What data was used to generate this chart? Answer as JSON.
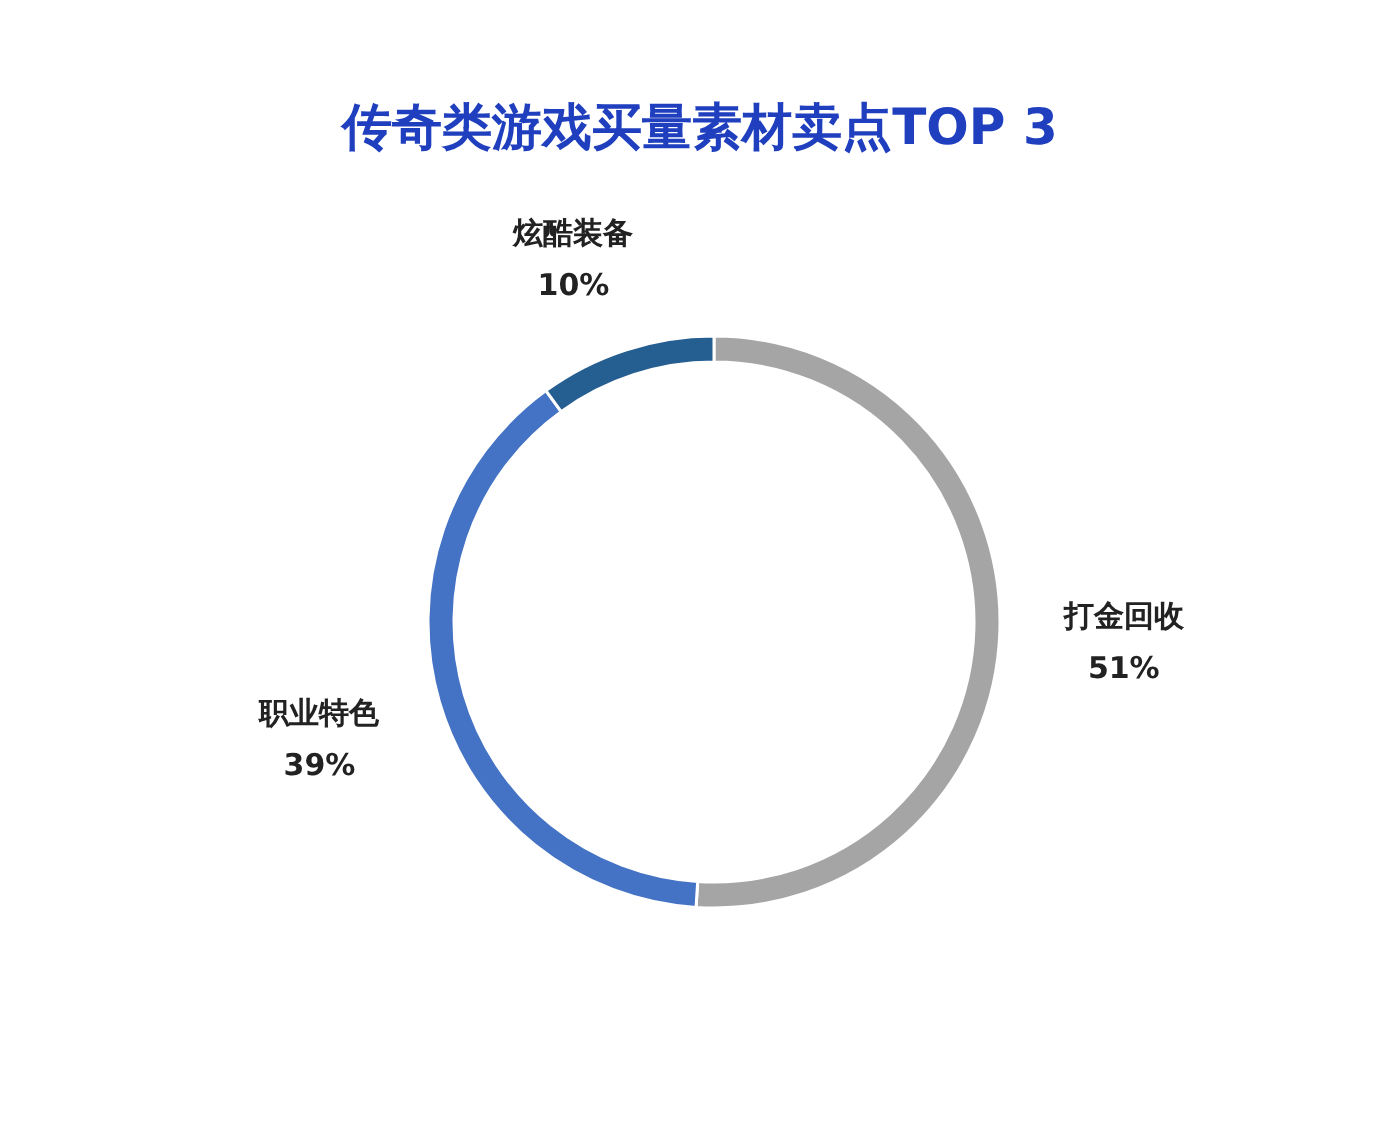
{
  "chart_data": {
    "type": "donut",
    "title": "传奇类游戏买量素材卖点TOP 3",
    "categories": [
      "打金回收",
      "职业特色",
      "炫酷装备"
    ],
    "values": [
      51,
      39,
      10
    ],
    "colors": [
      "#a5a5a5",
      "#4472c4",
      "#255e91"
    ],
    "value_labels": [
      "51%",
      "39%",
      "10%"
    ]
  }
}
